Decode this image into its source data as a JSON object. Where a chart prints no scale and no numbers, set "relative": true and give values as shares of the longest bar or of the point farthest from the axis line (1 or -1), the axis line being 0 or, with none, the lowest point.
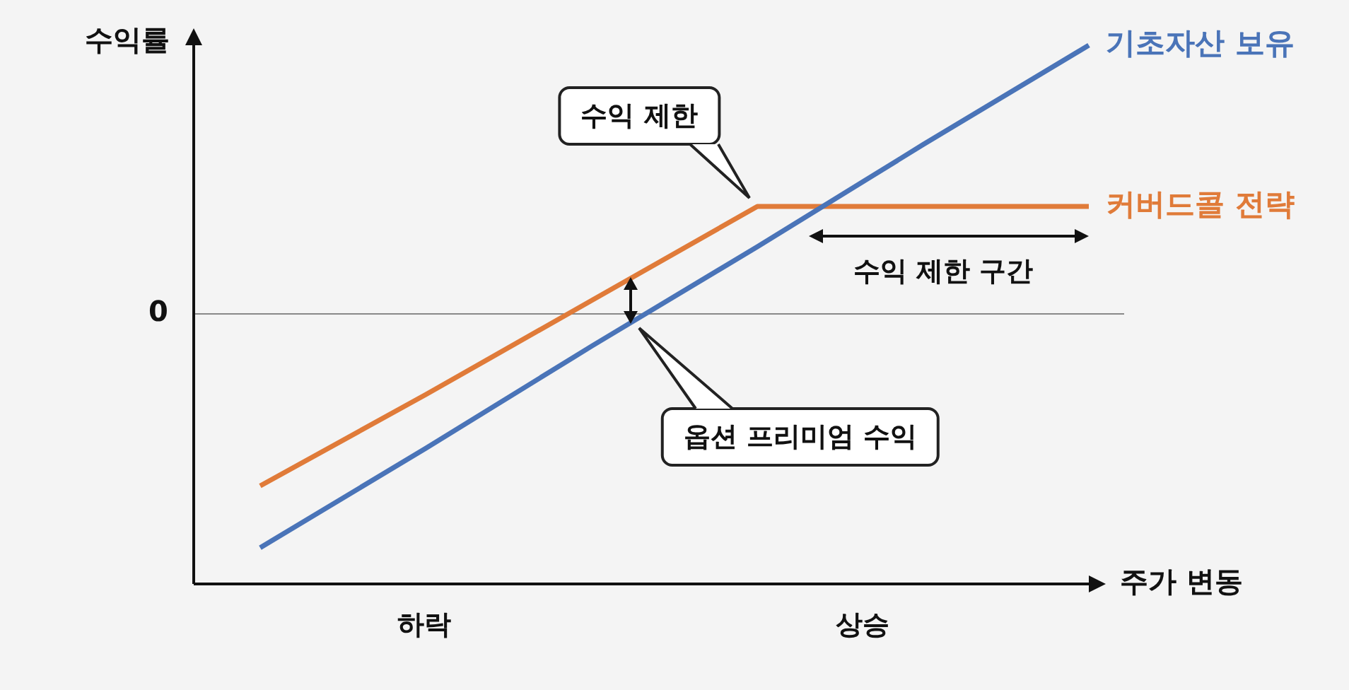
{
  "chart_data": {
    "type": "line",
    "relative": true,
    "xlabel": "주가 변동",
    "ylabel": "수익률",
    "categories": [
      null,
      null,
      null,
      null,
      null,
      null
    ],
    "series": [
      {
        "name": "기초자산 보유",
        "color": "#4a74b8",
        "values": [
          -0.87,
          -0.5,
          -0.12,
          0.25,
          0.63,
          1
        ]
      },
      {
        "name": "커버드콜 전략",
        "color": "#e07b39",
        "values": [
          -0.64,
          -0.3,
          0.05,
          0.4,
          0.4,
          0.4
        ]
      }
    ],
    "ref_lines": [
      {
        "axis": "y",
        "value": 0,
        "label": "0",
        "color": "#888888"
      }
    ],
    "annotations": [
      "수익 제한",
      "수익 제한 구간",
      "옵션 프리미엄 수익",
      "하락",
      "상승"
    ],
    "marker": "none",
    "legend": false
  }
}
